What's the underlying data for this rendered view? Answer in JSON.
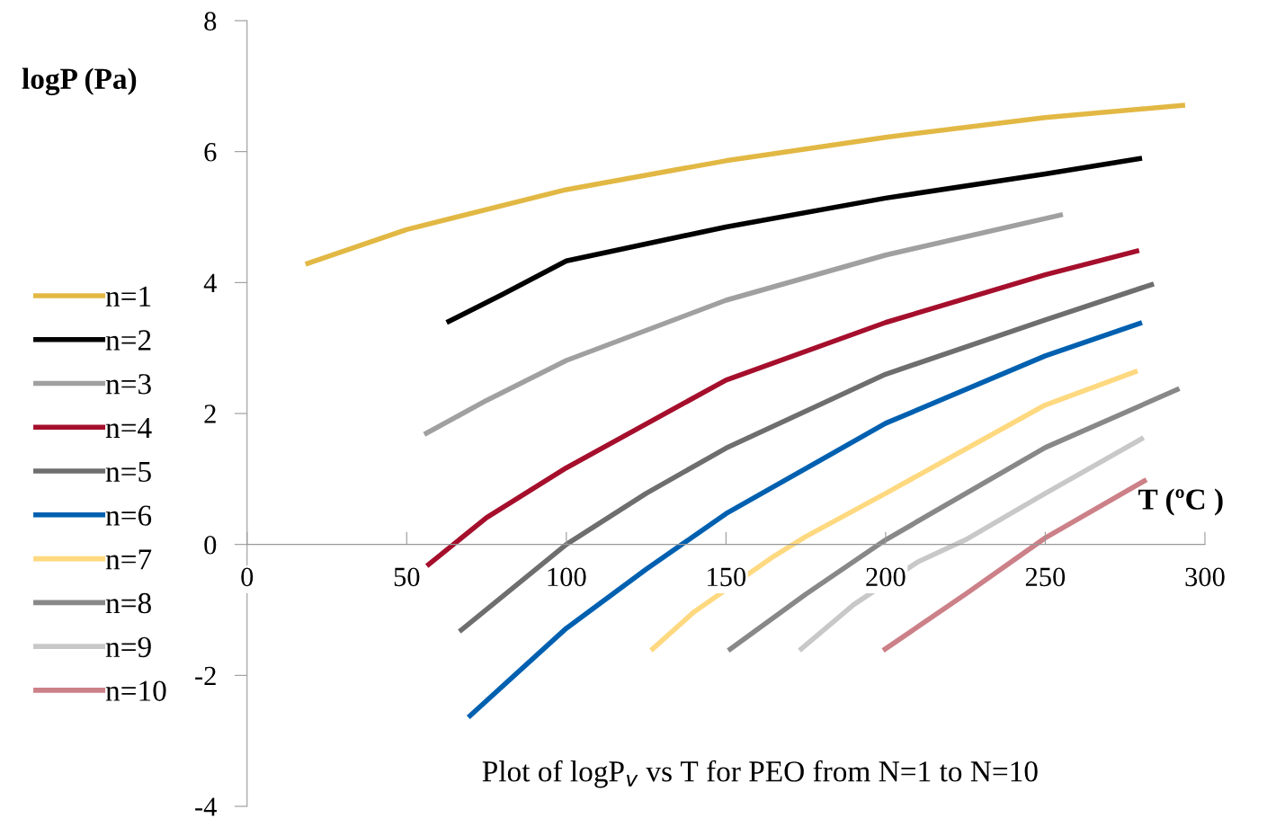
{
  "chart_data": {
    "type": "line",
    "xlabel": "T (ºC )",
    "ylabel": "logP (Pa)",
    "annotations": [
      "Plot of logP$_{v}$ vs T for PEO from N=1 to N=10"
    ],
    "xlim": [
      0,
      300
    ],
    "xticks": [
      0,
      50,
      100,
      150,
      200,
      250,
      300
    ],
    "ylim": [
      -4,
      8
    ],
    "yticks": [
      -4,
      -2,
      0,
      2,
      4,
      6,
      8
    ],
    "grid": false,
    "legend": "left",
    "marker": "none",
    "line_style": "solid",
    "series": [
      {
        "name": "n=1",
        "color": "#e2b844",
        "x": [
          18.3,
          50,
          100,
          150,
          200,
          250,
          293.8
        ],
        "values": [
          4.28,
          4.81,
          5.42,
          5.86,
          6.22,
          6.52,
          6.71
        ]
      },
      {
        "name": "n=2",
        "color": "#000000",
        "x": [
          62.5,
          80,
          100,
          150,
          200,
          250,
          280.3
        ],
        "values": [
          3.39,
          3.82,
          4.33,
          4.85,
          5.29,
          5.66,
          5.9
        ]
      },
      {
        "name": "n=3",
        "color": "#a0a0a0",
        "x": [
          55.5,
          75,
          100,
          150,
          200,
          255.5
        ],
        "values": [
          1.68,
          2.2,
          2.81,
          3.73,
          4.42,
          5.04
        ]
      },
      {
        "name": "n=4",
        "color": "#a50f2c",
        "x": [
          56.3,
          75,
          100,
          150,
          200,
          250,
          279.4
        ],
        "values": [
          -0.33,
          0.41,
          1.17,
          2.51,
          3.39,
          4.12,
          4.49
        ]
      },
      {
        "name": "n=5",
        "color": "#6e6e6e",
        "x": [
          66.5,
          100,
          125,
          150,
          200,
          250,
          284
        ],
        "values": [
          -1.33,
          0.0,
          0.78,
          1.47,
          2.6,
          3.43,
          3.98
        ]
      },
      {
        "name": "n=6",
        "color": "#0060b0",
        "x": [
          69.3,
          100,
          125,
          150,
          200,
          250,
          280.3
        ],
        "values": [
          -2.64,
          -1.28,
          -0.38,
          0.47,
          1.85,
          2.88,
          3.39
        ]
      },
      {
        "name": "n=7",
        "color": "#ffd980",
        "x": [
          126.5,
          140,
          165,
          175,
          200,
          250,
          278.9
        ],
        "values": [
          -1.62,
          -1.03,
          -0.18,
          0.12,
          0.78,
          2.13,
          2.65
        ]
      },
      {
        "name": "n=8",
        "color": "#888888",
        "x": [
          150.7,
          175,
          200,
          250,
          292
        ],
        "values": [
          -1.62,
          -0.76,
          0.07,
          1.48,
          2.38
        ]
      },
      {
        "name": "n=9",
        "color": "#c8c8c8",
        "x": [
          173,
          190,
          210,
          225,
          250,
          280.8
        ],
        "values": [
          -1.62,
          -0.92,
          -0.27,
          0.07,
          0.78,
          1.63
        ]
      },
      {
        "name": "n=10",
        "color": "#cc8088",
        "x": [
          199.2,
          225,
          250,
          281.7
        ],
        "values": [
          -1.62,
          -0.76,
          0.1,
          0.99
        ]
      }
    ]
  }
}
